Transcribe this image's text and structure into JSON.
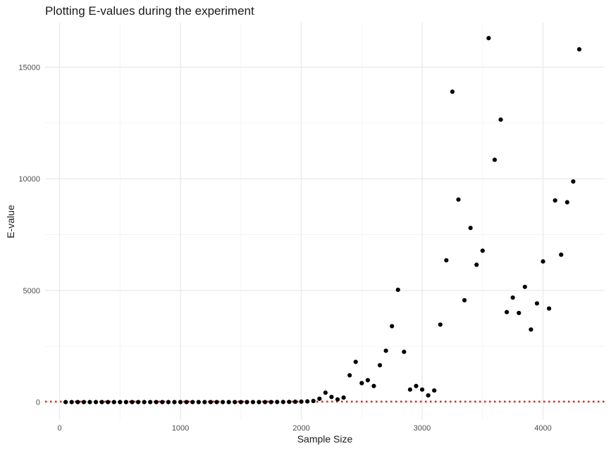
{
  "chart_data": {
    "type": "scatter",
    "title": "Plotting E-values during the experiment",
    "xlabel": "Sample Size",
    "ylabel": "E-value",
    "xlim": [
      -120,
      4510
    ],
    "ylim": [
      -800,
      17000
    ],
    "x_ticks": [
      0,
      1000,
      2000,
      3000,
      4000
    ],
    "y_ticks": [
      0,
      5000,
      10000,
      15000
    ],
    "x_tick_labels": [
      "0",
      "1000",
      "2000",
      "3000",
      "4000"
    ],
    "y_tick_labels": [
      "0",
      "5000",
      "10000",
      "15000"
    ],
    "x_minor_ticks": [
      500,
      1500,
      2500,
      3500
    ],
    "y_minor_ticks": [
      2500,
      7500,
      12500
    ],
    "grid": true,
    "point_color": "#000000",
    "reference_line": {
      "y": 20,
      "color": "#c0392b",
      "style": "dotted"
    },
    "points": [
      {
        "x": 50,
        "y": 0
      },
      {
        "x": 100,
        "y": 0
      },
      {
        "x": 150,
        "y": 0
      },
      {
        "x": 200,
        "y": 0
      },
      {
        "x": 250,
        "y": 0
      },
      {
        "x": 300,
        "y": 0
      },
      {
        "x": 350,
        "y": 0
      },
      {
        "x": 400,
        "y": 0
      },
      {
        "x": 450,
        "y": 0
      },
      {
        "x": 500,
        "y": 0
      },
      {
        "x": 550,
        "y": 0
      },
      {
        "x": 600,
        "y": 0
      },
      {
        "x": 650,
        "y": 0
      },
      {
        "x": 700,
        "y": 0
      },
      {
        "x": 750,
        "y": 0
      },
      {
        "x": 800,
        "y": 0
      },
      {
        "x": 850,
        "y": 0
      },
      {
        "x": 900,
        "y": 0
      },
      {
        "x": 950,
        "y": 0
      },
      {
        "x": 1000,
        "y": 0
      },
      {
        "x": 1050,
        "y": 0
      },
      {
        "x": 1100,
        "y": 0
      },
      {
        "x": 1150,
        "y": 0
      },
      {
        "x": 1200,
        "y": 0
      },
      {
        "x": 1250,
        "y": 0
      },
      {
        "x": 1300,
        "y": 0
      },
      {
        "x": 1350,
        "y": 0
      },
      {
        "x": 1400,
        "y": 0
      },
      {
        "x": 1450,
        "y": 0
      },
      {
        "x": 1500,
        "y": 0
      },
      {
        "x": 1550,
        "y": 0
      },
      {
        "x": 1600,
        "y": 0
      },
      {
        "x": 1650,
        "y": 0
      },
      {
        "x": 1700,
        "y": 0
      },
      {
        "x": 1750,
        "y": 0
      },
      {
        "x": 1800,
        "y": 5
      },
      {
        "x": 1850,
        "y": 5
      },
      {
        "x": 1900,
        "y": 10
      },
      {
        "x": 1950,
        "y": 15
      },
      {
        "x": 2000,
        "y": 20
      },
      {
        "x": 2050,
        "y": 30
      },
      {
        "x": 2100,
        "y": 50
      },
      {
        "x": 2150,
        "y": 150
      },
      {
        "x": 2200,
        "y": 420
      },
      {
        "x": 2250,
        "y": 230
      },
      {
        "x": 2300,
        "y": 120
      },
      {
        "x": 2350,
        "y": 200
      },
      {
        "x": 2400,
        "y": 1200
      },
      {
        "x": 2450,
        "y": 1800
      },
      {
        "x": 2500,
        "y": 850
      },
      {
        "x": 2550,
        "y": 980
      },
      {
        "x": 2600,
        "y": 720
      },
      {
        "x": 2650,
        "y": 1650
      },
      {
        "x": 2700,
        "y": 2300
      },
      {
        "x": 2750,
        "y": 3400
      },
      {
        "x": 2800,
        "y": 5030
      },
      {
        "x": 2850,
        "y": 2250
      },
      {
        "x": 2900,
        "y": 560
      },
      {
        "x": 2950,
        "y": 720
      },
      {
        "x": 3000,
        "y": 560
      },
      {
        "x": 3050,
        "y": 300
      },
      {
        "x": 3100,
        "y": 520
      },
      {
        "x": 3150,
        "y": 3470
      },
      {
        "x": 3200,
        "y": 6350
      },
      {
        "x": 3250,
        "y": 13900
      },
      {
        "x": 3300,
        "y": 9070
      },
      {
        "x": 3350,
        "y": 4560
      },
      {
        "x": 3400,
        "y": 7800
      },
      {
        "x": 3450,
        "y": 6150
      },
      {
        "x": 3500,
        "y": 6780
      },
      {
        "x": 3550,
        "y": 16300
      },
      {
        "x": 3600,
        "y": 10850
      },
      {
        "x": 3650,
        "y": 12650
      },
      {
        "x": 3700,
        "y": 4030
      },
      {
        "x": 3750,
        "y": 4680
      },
      {
        "x": 3800,
        "y": 3990
      },
      {
        "x": 3850,
        "y": 5160
      },
      {
        "x": 3900,
        "y": 3250
      },
      {
        "x": 3950,
        "y": 4420
      },
      {
        "x": 4000,
        "y": 6300
      },
      {
        "x": 4050,
        "y": 4190
      },
      {
        "x": 4100,
        "y": 9030
      },
      {
        "x": 4150,
        "y": 6600
      },
      {
        "x": 4200,
        "y": 8950
      },
      {
        "x": 4250,
        "y": 9880
      },
      {
        "x": 4300,
        "y": 15800
      }
    ]
  }
}
